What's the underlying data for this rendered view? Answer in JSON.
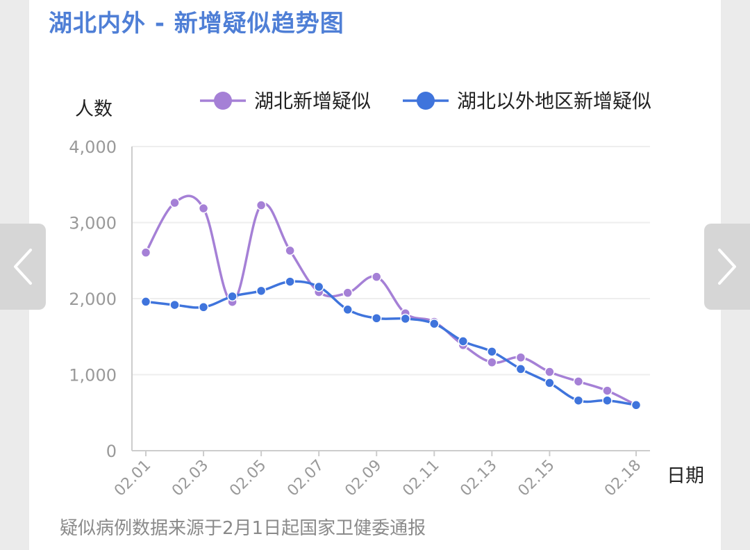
{
  "title": "湖北内外 - 新增疑似趋势图",
  "footer_note": "疑似病例数据来源于2月1日起国家卫健委通报",
  "nav": {
    "prev_icon": "chevron-left-icon",
    "next_icon": "chevron-right-icon"
  },
  "colors": {
    "title": "#4f7fd6",
    "series_hubei": "#a580d6",
    "series_outside": "#3f74dc",
    "grid": "#eeeeee",
    "axis_text": "#999999"
  },
  "chart_data": {
    "type": "line",
    "title": "湖北内外 - 新增疑似趋势图",
    "ylabel": "人数",
    "xlabel": "日期",
    "ylim": [
      0,
      4000
    ],
    "yticks": [
      0,
      1000,
      2000,
      3000,
      4000
    ],
    "ytick_labels": [
      "0",
      "1,000",
      "2,000",
      "3,000",
      "4,000"
    ],
    "x": [
      "02.01",
      "02.02",
      "02.03",
      "02.04",
      "02.05",
      "02.06",
      "02.07",
      "02.08",
      "02.09",
      "02.10",
      "02.11",
      "02.12",
      "02.13",
      "02.14",
      "02.15",
      "02.16",
      "02.17",
      "02.18"
    ],
    "xtick_labels": [
      "02.01",
      "02.03",
      "02.05",
      "02.07",
      "02.09",
      "02.11",
      "02.13",
      "02.15",
      "02.18"
    ],
    "xtick_indices": [
      0,
      2,
      4,
      6,
      8,
      10,
      12,
      14,
      17
    ],
    "legend_position": "top",
    "grid": true,
    "series": [
      {
        "name": "湖北新增疑似",
        "color": "#a580d6",
        "values": [
          2606,
          3260,
          3187,
          1957,
          3228,
          2631,
          2086,
          2076,
          2286,
          1806,
          1694,
          1389,
          1162,
          1226,
          1036,
          910,
          789,
          600
        ]
      },
      {
        "name": "湖北以外地区新增疑似",
        "color": "#3f74dc",
        "values": [
          1960,
          1917,
          1888,
          2029,
          2102,
          2223,
          2155,
          1856,
          1742,
          1736,
          1670,
          1439,
          1303,
          1074,
          891,
          660,
          660,
          600
        ]
      }
    ]
  }
}
